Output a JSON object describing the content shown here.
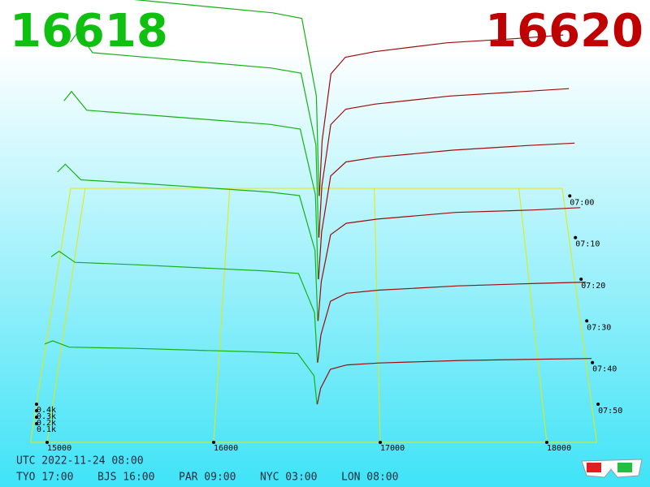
{
  "chart_data": {
    "type": "depth3d",
    "bid": 16618,
    "ask": 16620,
    "xlim": [
      14900,
      18300
    ],
    "xticks": [
      15000,
      16000,
      17000,
      18000
    ],
    "ylim": [
      0,
      2000
    ],
    "yticks": [
      {
        "value": 100,
        "label": "0.1k"
      },
      {
        "value": 200,
        "label": "0.2k"
      },
      {
        "value": 300,
        "label": "0.3k"
      },
      {
        "value": 400,
        "label": "0.4k"
      }
    ],
    "times": [
      "07:00",
      "07:10",
      "07:20",
      "07:30",
      "07:40",
      "07:50"
    ],
    "series": [
      {
        "color": "#13b313",
        "x": [
          14950,
          15000,
          15100,
          15500,
          15900,
          16300,
          16500,
          16600,
          16618
        ],
        "values": [
          [
            1900,
            2000,
            1800,
            1750,
            1700,
            1650,
            1600,
            900,
            0
          ],
          [
            1710,
            1800,
            1620,
            1575,
            1530,
            1485,
            1440,
            810,
            0
          ],
          [
            1520,
            1600,
            1440,
            1400,
            1360,
            1320,
            1280,
            720,
            0
          ],
          [
            1235,
            1300,
            1170,
            1140,
            1105,
            1070,
            1040,
            585,
            0
          ],
          [
            855,
            900,
            810,
            790,
            765,
            740,
            720,
            405,
            0
          ],
          [
            475,
            500,
            450,
            440,
            425,
            410,
            400,
            225,
            0
          ]
        ]
      },
      {
        "color": "#9e0c0c",
        "x": [
          16620,
          16640,
          16700,
          16800,
          17000,
          17500,
          18000,
          18300
        ],
        "values": [
          [
            0,
            500,
            1100,
            1250,
            1300,
            1380,
            1420,
            1450
          ],
          [
            0,
            450,
            990,
            1125,
            1170,
            1240,
            1280,
            1305
          ],
          [
            0,
            400,
            880,
            1000,
            1040,
            1100,
            1140,
            1160
          ],
          [
            0,
            325,
            715,
            810,
            845,
            900,
            920,
            940
          ],
          [
            0,
            225,
            495,
            560,
            585,
            620,
            640,
            650
          ],
          [
            0,
            125,
            275,
            310,
            325,
            345,
            355,
            360
          ]
        ]
      }
    ]
  },
  "footer": {
    "utc": "UTC 2022-11-24 08:00",
    "cities": [
      "TYO 17:00",
      "BJS 16:00",
      "PAR 09:00",
      "NYC 03:00",
      "LON 08:00"
    ]
  }
}
